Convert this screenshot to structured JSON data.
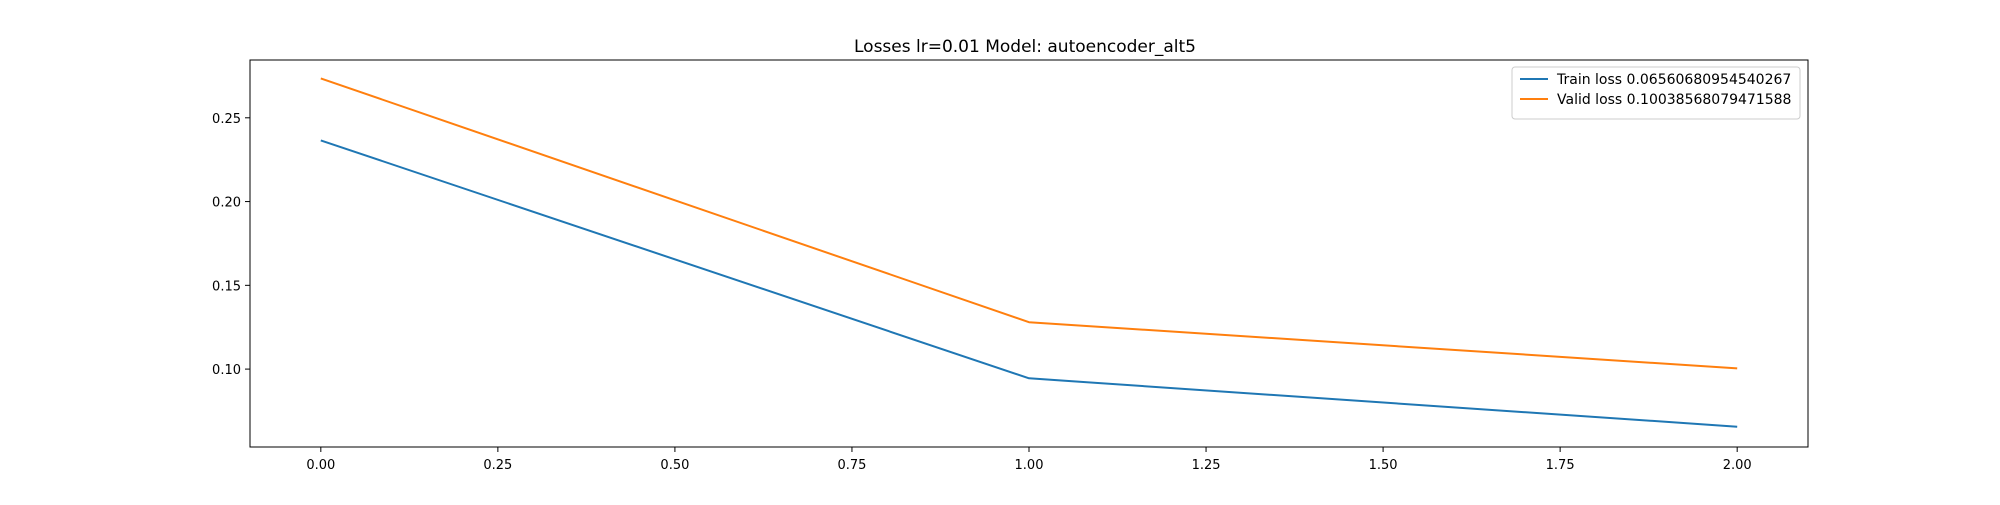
{
  "chart_data": {
    "type": "line",
    "title": "Losses lr=0.01 Model: autoencoder_alt5",
    "xlabel": "",
    "ylabel": "",
    "xlim": [
      -0.1,
      2.1
    ],
    "ylim": [
      0.0535,
      0.2845
    ],
    "xticks": [
      0.0,
      0.25,
      0.5,
      0.75,
      1.0,
      1.25,
      1.5,
      1.75,
      2.0
    ],
    "xtick_labels": [
      "0.00",
      "0.25",
      "0.50",
      "0.75",
      "1.00",
      "1.25",
      "1.50",
      "1.75",
      "2.00"
    ],
    "yticks": [
      0.1,
      0.15,
      0.2,
      0.25
    ],
    "ytick_labels": [
      "0.10",
      "0.15",
      "0.20",
      "0.25"
    ],
    "grid": false,
    "legend_position": "top-right",
    "series": [
      {
        "name": "Train loss 0.06560680954540267",
        "color": "#1f77b4",
        "x": [
          0,
          1,
          2
        ],
        "y": [
          0.2365,
          0.0945,
          0.0656
        ]
      },
      {
        "name": "Valid loss 0.10038568079471588",
        "color": "#ff7f0e",
        "x": [
          0,
          1,
          2
        ],
        "y": [
          0.2735,
          0.128,
          0.1004
        ]
      }
    ]
  }
}
